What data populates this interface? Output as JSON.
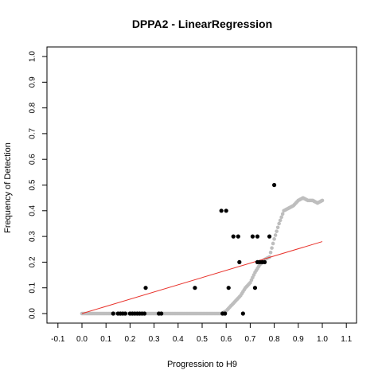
{
  "chart_data": {
    "type": "scatter",
    "title": "DPPA2 - LinearRegression",
    "xlabel": "Progression to H9",
    "ylabel": "Frequency of Detection",
    "xlim": [
      -0.1,
      1.1
    ],
    "ylim": [
      0.0,
      1.0
    ],
    "x_ticks": [
      "-0.1",
      "0.0",
      "0.1",
      "0.2",
      "0.3",
      "0.4",
      "0.5",
      "0.6",
      "0.7",
      "0.8",
      "0.9",
      "1.0",
      "1.1"
    ],
    "y_ticks": [
      "0.0",
      "0.1",
      "0.2",
      "0.3",
      "0.4",
      "0.5",
      "0.6",
      "0.7",
      "0.8",
      "0.9",
      "1.0"
    ],
    "grid": false,
    "colors": {
      "observed": "#000000",
      "smoothed": "#bebebe",
      "regression": "#e8312a"
    },
    "series": [
      {
        "kind": "observed-points",
        "points": [
          [
            0.13,
            0.0
          ],
          [
            0.15,
            0.0
          ],
          [
            0.16,
            0.0
          ],
          [
            0.17,
            0.0
          ],
          [
            0.18,
            0.0
          ],
          [
            0.2,
            0.0
          ],
          [
            0.21,
            0.0
          ],
          [
            0.22,
            0.0
          ],
          [
            0.23,
            0.0
          ],
          [
            0.24,
            0.0
          ],
          [
            0.25,
            0.0
          ],
          [
            0.26,
            0.0
          ],
          [
            0.265,
            0.1
          ],
          [
            0.32,
            0.0
          ],
          [
            0.33,
            0.0
          ],
          [
            0.47,
            0.1
          ],
          [
            0.58,
            0.4
          ],
          [
            0.585,
            0.0
          ],
          [
            0.595,
            0.0
          ],
          [
            0.6,
            0.4
          ],
          [
            0.61,
            0.1
          ],
          [
            0.63,
            0.3
          ],
          [
            0.65,
            0.3
          ],
          [
            0.655,
            0.2
          ],
          [
            0.67,
            0.0
          ],
          [
            0.71,
            0.3
          ],
          [
            0.72,
            0.1
          ],
          [
            0.73,
            0.3
          ],
          [
            0.73,
            0.2
          ],
          [
            0.74,
            0.2
          ],
          [
            0.75,
            0.2
          ],
          [
            0.76,
            0.2
          ],
          [
            0.78,
            0.3
          ],
          [
            0.8,
            0.5
          ]
        ]
      },
      {
        "kind": "smoothed-curve",
        "points": [
          [
            0.0,
            0.0
          ],
          [
            0.1,
            0.0
          ],
          [
            0.2,
            0.0
          ],
          [
            0.3,
            0.0
          ],
          [
            0.4,
            0.0
          ],
          [
            0.5,
            0.0
          ],
          [
            0.55,
            0.0
          ],
          [
            0.58,
            0.0
          ],
          [
            0.6,
            0.01
          ],
          [
            0.62,
            0.03
          ],
          [
            0.64,
            0.05
          ],
          [
            0.66,
            0.07
          ],
          [
            0.68,
            0.1
          ],
          [
            0.7,
            0.12
          ],
          [
            0.72,
            0.16
          ],
          [
            0.74,
            0.19
          ],
          [
            0.76,
            0.21
          ],
          [
            0.78,
            0.22
          ],
          [
            0.8,
            0.29
          ],
          [
            0.82,
            0.35
          ],
          [
            0.84,
            0.4
          ],
          [
            0.86,
            0.41
          ],
          [
            0.88,
            0.42
          ],
          [
            0.9,
            0.44
          ],
          [
            0.92,
            0.45
          ],
          [
            0.94,
            0.44
          ],
          [
            0.96,
            0.44
          ],
          [
            0.98,
            0.43
          ],
          [
            1.0,
            0.44
          ]
        ]
      },
      {
        "kind": "regression-line",
        "points": [
          [
            0.0,
            0.0
          ],
          [
            1.0,
            0.28
          ]
        ]
      }
    ]
  }
}
